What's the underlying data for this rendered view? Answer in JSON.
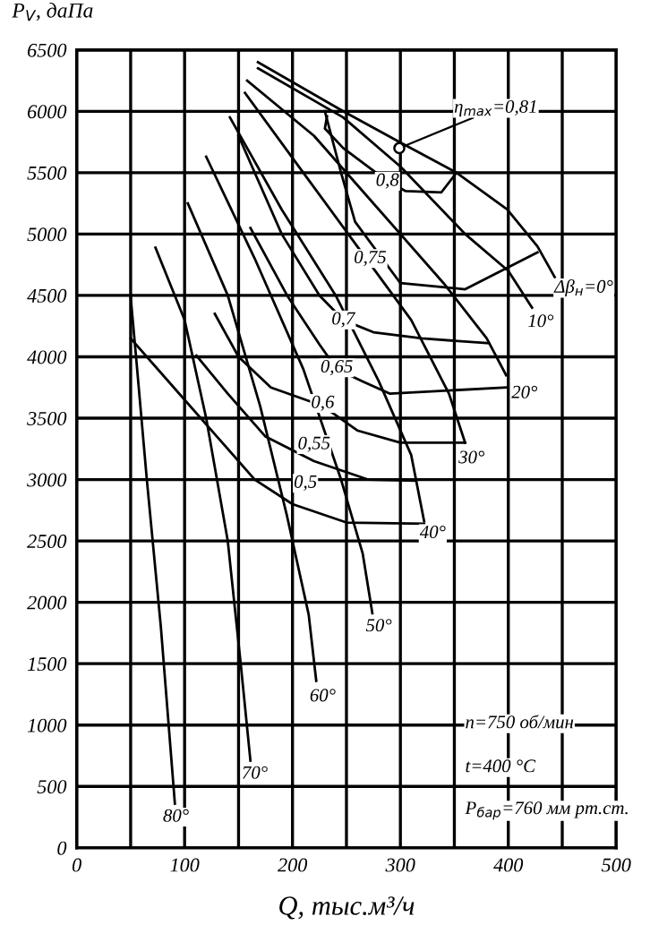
{
  "chart_data": {
    "type": "line",
    "xlabel": "Q, тыс.м³/ч",
    "ylabel": "P$_{V}$, даПа",
    "xlim": [
      0,
      500
    ],
    "ylim": [
      0,
      6500
    ],
    "xticks": [
      0,
      {
        "value": 50,
        "label": null
      },
      100,
      {
        "value": 150,
        "label": null
      },
      200,
      {
        "value": 250,
        "label": null
      },
      300,
      {
        "value": 350,
        "label": null
      },
      400,
      {
        "value": 450,
        "label": null
      },
      500
    ],
    "yticks": [
      0,
      500,
      1000,
      1500,
      2000,
      2500,
      3000,
      3500,
      4000,
      4500,
      5000,
      5500,
      6000,
      6500
    ],
    "grid": true,
    "legend": false,
    "series": [
      {
        "color": "#000000",
        "x": [
          168,
          247,
          299,
          352,
          399,
          427,
          443
        ],
        "values": [
          6400,
          6000,
          5750,
          5500,
          5200,
          4900,
          4650
        ]
      },
      {
        "color": "#000000",
        "x": [
          168,
          247,
          300,
          360,
          400,
          422
        ],
        "values": [
          6350,
          5950,
          5550,
          5000,
          4700,
          4400
        ]
      },
      {
        "color": "#000000",
        "x": [
          158,
          220,
          280,
          340,
          380,
          398
        ],
        "values": [
          6250,
          5800,
          5200,
          4600,
          4150,
          3850
        ]
      },
      {
        "color": "#000000",
        "x": [
          156,
          210,
          260,
          310,
          345,
          360
        ],
        "values": [
          6150,
          5500,
          4900,
          4300,
          3700,
          3300
        ]
      },
      {
        "color": "#000000",
        "x": [
          142,
          190,
          240,
          280,
          310,
          322
        ],
        "values": [
          5950,
          5200,
          4500,
          3800,
          3200,
          2660
        ]
      },
      {
        "color": "#000000",
        "x": [
          120,
          165,
          210,
          245,
          265,
          274
        ],
        "values": [
          5630,
          4800,
          3900,
          3000,
          2400,
          1910
        ]
      },
      {
        "color": "#000000",
        "x": [
          103,
          140,
          170,
          195,
          215,
          222
        ],
        "values": [
          5250,
          4500,
          3600,
          2700,
          1900,
          1360
        ]
      },
      {
        "color": "#000000",
        "x": [
          73,
          100,
          120,
          140,
          152,
          161
        ],
        "values": [
          4890,
          4300,
          3500,
          2500,
          1500,
          710
        ]
      },
      {
        "color": "#000000",
        "x": [
          50,
          55,
          65,
          78,
          91
        ],
        "values": [
          4490,
          4000,
          3000,
          1800,
          360
        ]
      },
      {
        "color": "#000000",
        "x": [
          50,
          90,
          130,
          165,
          200,
          250,
          322
        ],
        "values": [
          4150,
          3750,
          3350,
          3000,
          2800,
          2650,
          2640
        ]
      },
      {
        "color": "#000000",
        "x": [
          111,
          140,
          175,
          220,
          270,
          314
        ],
        "values": [
          4010,
          3700,
          3350,
          3150,
          3000,
          2990
        ]
      },
      {
        "color": "#000000",
        "x": [
          128,
          150,
          180,
          228,
          260,
          300,
          360
        ],
        "values": [
          4350,
          4000,
          3750,
          3600,
          3400,
          3300,
          3300
        ]
      },
      {
        "color": "#000000",
        "x": [
          161,
          195,
          225,
          241,
          265,
          290,
          398
        ],
        "values": [
          5050,
          4500,
          4100,
          3900,
          3800,
          3700,
          3750
        ]
      },
      {
        "color": "#000000",
        "x": [
          150,
          190,
          225,
          247,
          275,
          320,
          382
        ],
        "values": [
          5800,
          5000,
          4500,
          4300,
          4200,
          4150,
          4110
        ]
      },
      {
        "color": "#000000",
        "x": [
          230,
          245,
          258,
          300,
          360,
          427
        ],
        "values": [
          6000,
          5500,
          5100,
          4600,
          4550,
          4850
        ]
      },
      {
        "color": "#000000",
        "x": [
          232,
          230,
          247,
          288,
          305,
          338,
          352
        ],
        "values": [
          5960,
          5860,
          5700,
          5430,
          5350,
          5340,
          5500
        ]
      },
      {
        "type": "scatter",
        "marker": "circle",
        "color": "#000000",
        "x": [
          299
        ],
        "values": [
          5700
        ]
      }
    ],
    "annotations": [
      {
        "text": "Δβ$_{н}$=0°",
        "x": 470,
        "y": 4560
      },
      {
        "text": "10°",
        "x": 430,
        "y": 4280
      },
      {
        "text": "20°",
        "x": 415,
        "y": 3700
      },
      {
        "text": "30°",
        "x": 366,
        "y": 3170
      },
      {
        "text": "40°",
        "x": 330,
        "y": 2560
      },
      {
        "text": "50°",
        "x": 280,
        "y": 1800
      },
      {
        "text": "60°",
        "x": 228,
        "y": 1230
      },
      {
        "text": "70°",
        "x": 165,
        "y": 600
      },
      {
        "text": "80°",
        "x": 92,
        "y": 250
      },
      {
        "text": "0,5",
        "x": 212,
        "y": 2970
      },
      {
        "text": "0,55",
        "x": 220,
        "y": 3285
      },
      {
        "text": "0,6",
        "x": 228,
        "y": 3620
      },
      {
        "text": "0,65",
        "x": 241,
        "y": 3910
      },
      {
        "text": "0,7",
        "x": 247,
        "y": 4300
      },
      {
        "text": "0,75",
        "x": 272,
        "y": 4800
      },
      {
        "text": "0,8",
        "x": 288,
        "y": 5430
      },
      {
        "text": "η$_{max}$=0,81",
        "x": 299,
        "y": 5700
      },
      "n=750 об/мин",
      "t=400 °С",
      "P$_{бар}$=760 мм рт.ст."
    ]
  }
}
